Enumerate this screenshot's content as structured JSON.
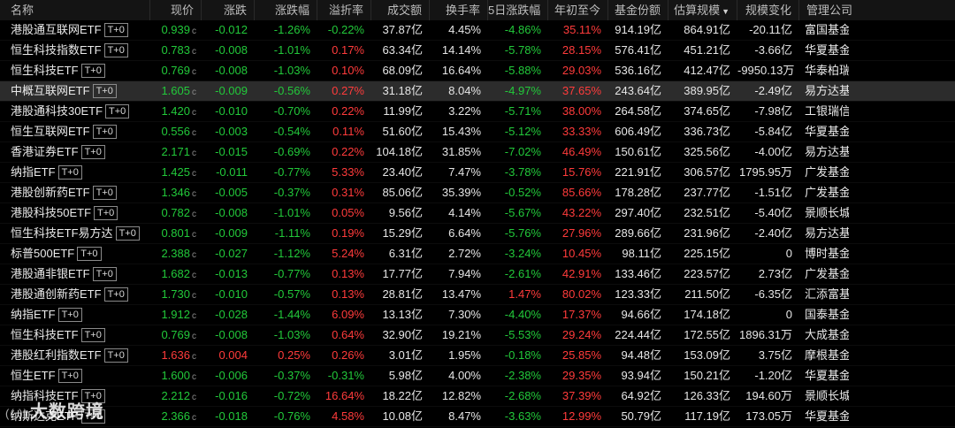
{
  "header": {
    "name": "名称",
    "price": "现价",
    "change": "涨跌",
    "change_pct": "涨跌幅",
    "premium": "溢折率",
    "turnover": "成交额",
    "turnover_rate": "换手率",
    "change_5d": "5日涨跌幅",
    "ytd": "年初至今",
    "fund_shares": "基金份额",
    "est_scale": "估算规模",
    "scale_change": "规模变化",
    "company": "管理公司"
  },
  "colors": {
    "up": "#ff3b3b",
    "down": "#22c93a",
    "flat": "#e6e6e6"
  },
  "rows": [
    {
      "name": "港股通互联网ETF",
      "tag": "T+0",
      "price": "0.939",
      "unit": "c",
      "change": "-0.012",
      "change_pct": "-1.26%",
      "premium": "-0.22%",
      "turnover": "37.87亿",
      "turnover_rate": "4.45%",
      "change_5d": "-4.86%",
      "ytd": "35.11%",
      "fund_shares": "914.19亿",
      "est_scale": "864.91亿",
      "scale_change": "-20.11亿",
      "company": "富国基金"
    },
    {
      "name": "恒生科技指数ETF",
      "tag": "T+0",
      "price": "0.783",
      "unit": "c",
      "change": "-0.008",
      "change_pct": "-1.01%",
      "premium": "0.17%",
      "turnover": "63.34亿",
      "turnover_rate": "14.14%",
      "change_5d": "-5.78%",
      "ytd": "28.15%",
      "fund_shares": "576.41亿",
      "est_scale": "451.21亿",
      "scale_change": "-3.66亿",
      "company": "华夏基金"
    },
    {
      "name": "恒生科技ETF",
      "tag": "T+0",
      "price": "0.769",
      "unit": "c",
      "change": "-0.008",
      "change_pct": "-1.03%",
      "premium": "0.10%",
      "turnover": "68.09亿",
      "turnover_rate": "16.64%",
      "change_5d": "-5.88%",
      "ytd": "29.03%",
      "fund_shares": "536.16亿",
      "est_scale": "412.47亿",
      "scale_change": "-9950.13万",
      "company": "华泰柏瑞基金"
    },
    {
      "name": "中概互联网ETF",
      "tag": "T+0",
      "price": "1.605",
      "unit": "c",
      "change": "-0.009",
      "change_pct": "-0.56%",
      "premium": "0.27%",
      "turnover": "31.18亿",
      "turnover_rate": "8.04%",
      "change_5d": "-4.97%",
      "ytd": "37.65%",
      "fund_shares": "243.64亿",
      "est_scale": "389.95亿",
      "scale_change": "-2.49亿",
      "company": "易方达基金",
      "selected": true
    },
    {
      "name": "港股通科技30ETF",
      "tag": "T+0",
      "price": "1.420",
      "unit": "c",
      "change": "-0.010",
      "change_pct": "-0.70%",
      "premium": "0.22%",
      "turnover": "11.99亿",
      "turnover_rate": "3.22%",
      "change_5d": "-5.71%",
      "ytd": "38.00%",
      "fund_shares": "264.58亿",
      "est_scale": "374.65亿",
      "scale_change": "-7.98亿",
      "company": "工银瑞信基金"
    },
    {
      "name": "恒生互联网ETF",
      "tag": "T+0",
      "price": "0.556",
      "unit": "c",
      "change": "-0.003",
      "change_pct": "-0.54%",
      "premium": "0.11%",
      "turnover": "51.60亿",
      "turnover_rate": "15.43%",
      "change_5d": "-5.12%",
      "ytd": "33.33%",
      "fund_shares": "606.49亿",
      "est_scale": "336.73亿",
      "scale_change": "-5.84亿",
      "company": "华夏基金"
    },
    {
      "name": "香港证券ETF",
      "tag": "T+0",
      "price": "2.171",
      "unit": "c",
      "change": "-0.015",
      "change_pct": "-0.69%",
      "premium": "0.22%",
      "turnover": "104.18亿",
      "turnover_rate": "31.85%",
      "change_5d": "-7.02%",
      "ytd": "46.49%",
      "fund_shares": "150.61亿",
      "est_scale": "325.56亿",
      "scale_change": "-4.00亿",
      "company": "易方达基金"
    },
    {
      "name": "纳指ETF",
      "tag": "T+0",
      "price": "1.425",
      "unit": "c",
      "change": "-0.011",
      "change_pct": "-0.77%",
      "premium": "5.33%",
      "turnover": "23.40亿",
      "turnover_rate": "7.47%",
      "change_5d": "-3.78%",
      "ytd": "15.76%",
      "fund_shares": "221.91亿",
      "est_scale": "306.57亿",
      "scale_change": "1795.95万",
      "company": "广发基金"
    },
    {
      "name": "港股创新药ETF",
      "tag": "T+0",
      "price": "1.346",
      "unit": "c",
      "change": "-0.005",
      "change_pct": "-0.37%",
      "premium": "0.31%",
      "turnover": "85.06亿",
      "turnover_rate": "35.39%",
      "change_5d": "-0.52%",
      "ytd": "85.66%",
      "fund_shares": "178.28亿",
      "est_scale": "237.77亿",
      "scale_change": "-1.51亿",
      "company": "广发基金"
    },
    {
      "name": "港股科技50ETF",
      "tag": "T+0",
      "price": "0.782",
      "unit": "c",
      "change": "-0.008",
      "change_pct": "-1.01%",
      "premium": "0.05%",
      "turnover": "9.56亿",
      "turnover_rate": "4.14%",
      "change_5d": "-5.67%",
      "ytd": "43.22%",
      "fund_shares": "297.40亿",
      "est_scale": "232.51亿",
      "scale_change": "-5.40亿",
      "company": "景顺长城基金"
    },
    {
      "name": "恒生科技ETF易方达",
      "tag": "T+0",
      "price": "0.801",
      "unit": "c",
      "change": "-0.009",
      "change_pct": "-1.11%",
      "premium": "0.19%",
      "turnover": "15.29亿",
      "turnover_rate": "6.64%",
      "change_5d": "-5.76%",
      "ytd": "27.96%",
      "fund_shares": "289.66亿",
      "est_scale": "231.96亿",
      "scale_change": "-2.40亿",
      "company": "易方达基金"
    },
    {
      "name": "标普500ETF",
      "tag": "T+0",
      "price": "2.388",
      "unit": "c",
      "change": "-0.027",
      "change_pct": "-1.12%",
      "premium": "5.24%",
      "turnover": "6.31亿",
      "turnover_rate": "2.72%",
      "change_5d": "-3.24%",
      "ytd": "10.45%",
      "fund_shares": "98.11亿",
      "est_scale": "225.15亿",
      "scale_change": "0",
      "company": "博时基金"
    },
    {
      "name": "港股通非银ETF",
      "tag": "T+0",
      "price": "1.682",
      "unit": "c",
      "change": "-0.013",
      "change_pct": "-0.77%",
      "premium": "0.13%",
      "turnover": "17.77亿",
      "turnover_rate": "7.94%",
      "change_5d": "-2.61%",
      "ytd": "42.91%",
      "fund_shares": "133.46亿",
      "est_scale": "223.57亿",
      "scale_change": "2.73亿",
      "company": "广发基金"
    },
    {
      "name": "港股通创新药ETF",
      "tag": "T+0",
      "price": "1.730",
      "unit": "c",
      "change": "-0.010",
      "change_pct": "-0.57%",
      "premium": "0.13%",
      "turnover": "28.81亿",
      "turnover_rate": "13.47%",
      "change_5d": "1.47%",
      "ytd": "80.02%",
      "fund_shares": "123.33亿",
      "est_scale": "211.50亿",
      "scale_change": "-6.35亿",
      "company": "汇添富基金"
    },
    {
      "name": "纳指ETF",
      "tag": "T+0",
      "price": "1.912",
      "unit": "c",
      "change": "-0.028",
      "change_pct": "-1.44%",
      "premium": "6.09%",
      "turnover": "13.13亿",
      "turnover_rate": "7.30%",
      "change_5d": "-4.40%",
      "ytd": "17.37%",
      "fund_shares": "94.66亿",
      "est_scale": "174.18亿",
      "scale_change": "0",
      "company": "国泰基金"
    },
    {
      "name": "恒生科技ETF",
      "tag": "T+0",
      "price": "0.769",
      "unit": "c",
      "change": "-0.008",
      "change_pct": "-1.03%",
      "premium": "0.64%",
      "turnover": "32.90亿",
      "turnover_rate": "19.21%",
      "change_5d": "-5.53%",
      "ytd": "29.24%",
      "fund_shares": "224.44亿",
      "est_scale": "172.55亿",
      "scale_change": "1896.31万",
      "company": "大成基金"
    },
    {
      "name": "港股红利指数ETF",
      "tag": "T+0",
      "price": "1.636",
      "unit": "c",
      "change": "0.004",
      "change_pct": "0.25%",
      "premium": "0.26%",
      "turnover": "3.01亿",
      "turnover_rate": "1.95%",
      "change_5d": "-0.18%",
      "ytd": "25.85%",
      "fund_shares": "94.48亿",
      "est_scale": "153.09亿",
      "scale_change": "3.75亿",
      "company": "摩根基金"
    },
    {
      "name": "恒生ETF",
      "tag": "T+0",
      "price": "1.600",
      "unit": "c",
      "change": "-0.006",
      "change_pct": "-0.37%",
      "premium": "-0.31%",
      "turnover": "5.98亿",
      "turnover_rate": "4.00%",
      "change_5d": "-2.38%",
      "ytd": "29.35%",
      "fund_shares": "93.94亿",
      "est_scale": "150.21亿",
      "scale_change": "-1.20亿",
      "company": "华夏基金"
    },
    {
      "name": "纳指科技ETF",
      "tag": "T+0",
      "price": "2.212",
      "unit": "c",
      "change": "-0.016",
      "change_pct": "-0.72%",
      "premium": "16.64%",
      "turnover": "18.22亿",
      "turnover_rate": "12.82%",
      "change_5d": "-2.68%",
      "ytd": "37.39%",
      "fund_shares": "64.92亿",
      "est_scale": "126.33亿",
      "scale_change": "194.60万",
      "company": "景顺长城基金"
    },
    {
      "name": "纳斯达克ETF",
      "tag": "T+0",
      "price": "2.366",
      "unit": "c",
      "change": "-0.018",
      "change_pct": "-0.76%",
      "premium": "4.58%",
      "turnover": "10.08亿",
      "turnover_rate": "8.47%",
      "change_5d": "-3.63%",
      "ytd": "12.99%",
      "fund_shares": "50.79亿",
      "est_scale": "117.19亿",
      "scale_change": "173.05万",
      "company": "华夏基金"
    }
  ],
  "watermark": {
    "logo_text": "(( ))",
    "text": "大数跨境"
  }
}
